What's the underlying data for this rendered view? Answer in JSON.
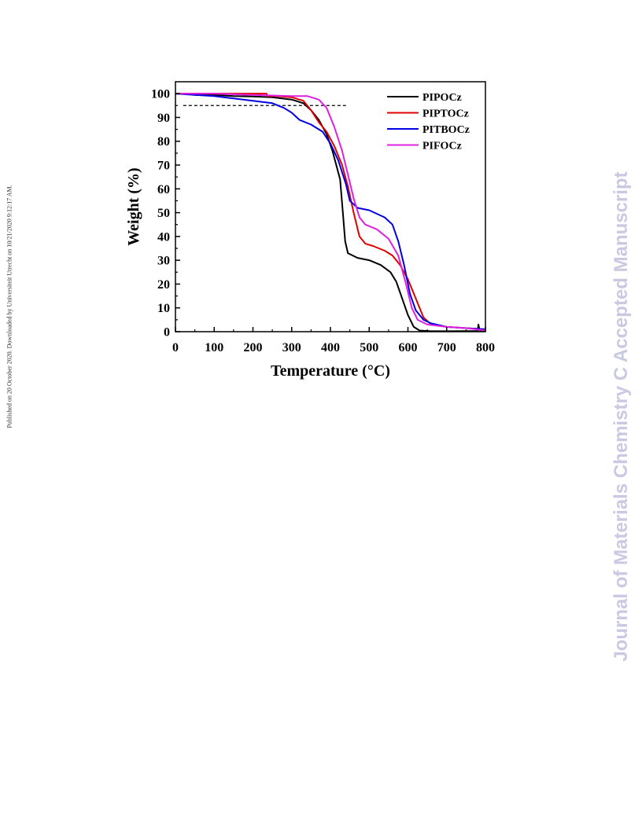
{
  "side_note": "Published on 20 October 2020. Downloaded by Universiteit Utrecht on 10/21/2020 9:12:17 AM.",
  "watermark": "Journal of Materials Chemistry C Accepted Manuscript",
  "chart_data": {
    "type": "line",
    "title": "",
    "xlabel": "Temperature (°C)",
    "ylabel": "Weight (%)",
    "xlim": [
      0,
      800
    ],
    "ylim": [
      0,
      105
    ],
    "xticks": [
      0,
      100,
      200,
      300,
      400,
      500,
      600,
      700,
      800
    ],
    "yticks": [
      0,
      10,
      20,
      30,
      40,
      50,
      60,
      70,
      80,
      90,
      100
    ],
    "grid": false,
    "legend": "top-right",
    "reference_line": {
      "y": 95,
      "x_range": [
        20,
        440
      ],
      "style": "dashed"
    },
    "series": [
      {
        "name": "PIPOCz",
        "color": "#000000",
        "points": [
          [
            0,
            100
          ],
          [
            30,
            100
          ],
          [
            50,
            99.5
          ],
          [
            100,
            99.5
          ],
          [
            150,
            99
          ],
          [
            200,
            98.8
          ],
          [
            250,
            98.5
          ],
          [
            300,
            97.5
          ],
          [
            330,
            96
          ],
          [
            350,
            93
          ],
          [
            370,
            89
          ],
          [
            390,
            83
          ],
          [
            405,
            76
          ],
          [
            415,
            70
          ],
          [
            425,
            64
          ],
          [
            432,
            50
          ],
          [
            438,
            38
          ],
          [
            445,
            33
          ],
          [
            470,
            31
          ],
          [
            500,
            30
          ],
          [
            530,
            28
          ],
          [
            555,
            25
          ],
          [
            570,
            21
          ],
          [
            585,
            14
          ],
          [
            600,
            7
          ],
          [
            615,
            2
          ],
          [
            630,
            0.5
          ],
          [
            660,
            0.2
          ],
          [
            700,
            0.2
          ],
          [
            780,
            0.3
          ],
          [
            782,
            3
          ],
          [
            785,
            0.5
          ],
          [
            800,
            0.5
          ]
        ]
      },
      {
        "name": "PIPTOCz",
        "color": "#e00000",
        "points": [
          [
            0,
            100
          ],
          [
            100,
            100
          ],
          [
            150,
            100
          ],
          [
            200,
            100
          ],
          [
            235,
            100
          ],
          [
            238,
            99
          ],
          [
            260,
            99
          ],
          [
            300,
            98.5
          ],
          [
            330,
            97
          ],
          [
            350,
            93
          ],
          [
            370,
            88
          ],
          [
            390,
            84
          ],
          [
            410,
            78
          ],
          [
            430,
            70
          ],
          [
            445,
            61
          ],
          [
            460,
            50
          ],
          [
            475,
            40
          ],
          [
            490,
            37
          ],
          [
            510,
            36
          ],
          [
            540,
            34
          ],
          [
            560,
            32
          ],
          [
            580,
            28
          ],
          [
            600,
            22
          ],
          [
            620,
            14
          ],
          [
            640,
            6
          ],
          [
            660,
            3
          ],
          [
            700,
            2
          ],
          [
            750,
            1.5
          ],
          [
            800,
            1
          ]
        ]
      },
      {
        "name": "PITBOCz",
        "color": "#0000e0",
        "points": [
          [
            0,
            100
          ],
          [
            50,
            99.5
          ],
          [
            100,
            99
          ],
          [
            150,
            98
          ],
          [
            200,
            97
          ],
          [
            250,
            96
          ],
          [
            280,
            94
          ],
          [
            300,
            92
          ],
          [
            320,
            89
          ],
          [
            350,
            87
          ],
          [
            380,
            84
          ],
          [
            400,
            79
          ],
          [
            420,
            72
          ],
          [
            440,
            62
          ],
          [
            450,
            55
          ],
          [
            470,
            52
          ],
          [
            500,
            51
          ],
          [
            540,
            48
          ],
          [
            560,
            45
          ],
          [
            575,
            38
          ],
          [
            590,
            28
          ],
          [
            605,
            16
          ],
          [
            620,
            9
          ],
          [
            640,
            5
          ],
          [
            660,
            3.5
          ],
          [
            700,
            2
          ],
          [
            750,
            1.5
          ],
          [
            800,
            1
          ]
        ]
      },
      {
        "name": "PIFOCz",
        "color": "#e020e0",
        "points": [
          [
            0,
            100
          ],
          [
            100,
            100
          ],
          [
            200,
            99.5
          ],
          [
            300,
            99
          ],
          [
            340,
            99
          ],
          [
            370,
            97.5
          ],
          [
            390,
            94
          ],
          [
            410,
            86
          ],
          [
            430,
            76
          ],
          [
            445,
            66
          ],
          [
            460,
            56
          ],
          [
            475,
            48
          ],
          [
            490,
            45
          ],
          [
            520,
            43
          ],
          [
            550,
            39
          ],
          [
            575,
            32
          ],
          [
            595,
            20
          ],
          [
            610,
            10
          ],
          [
            625,
            5
          ],
          [
            650,
            3
          ],
          [
            700,
            2
          ],
          [
            750,
            1.5
          ],
          [
            800,
            0.5
          ]
        ]
      }
    ]
  }
}
